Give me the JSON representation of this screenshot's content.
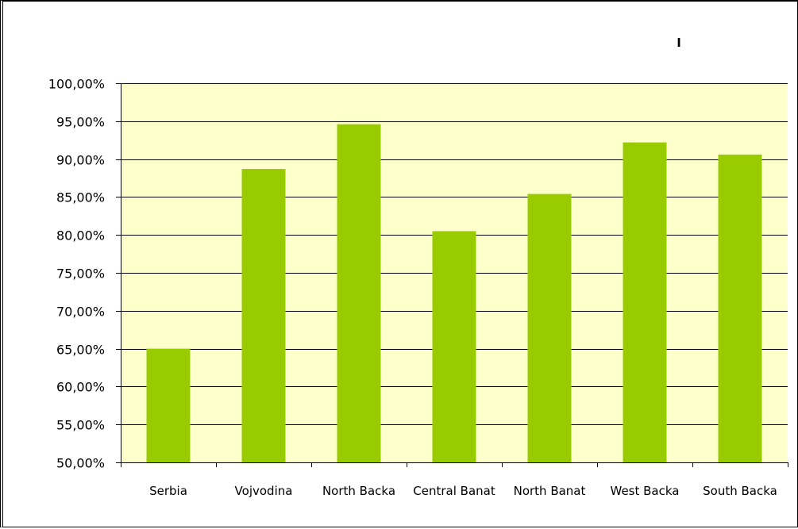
{
  "chart_data": {
    "type": "bar",
    "title": "ı",
    "xlabel": "",
    "ylabel": "",
    "categories": [
      "Serbia",
      "Vojvodina",
      "North Backa",
      "Central Banat",
      "North Banat",
      "West Backa",
      "South Backa"
    ],
    "values": [
      65.0,
      88.7,
      94.6,
      80.5,
      85.4,
      92.2,
      90.6
    ],
    "ylim": [
      50,
      100
    ],
    "yticks": [
      50,
      55,
      60,
      65,
      70,
      75,
      80,
      85,
      90,
      95,
      100
    ],
    "ytick_labels": [
      "50,00%",
      "55,00%",
      "60,00%",
      "65,00%",
      "70,00%",
      "75,00%",
      "80,00%",
      "85,00%",
      "90,00%",
      "95,00%",
      "100,00%"
    ],
    "grid": true,
    "legend": "none",
    "colors": {
      "bar": "#99cc00",
      "plot_background": "#ffffcc",
      "gridline": "#000000"
    }
  }
}
